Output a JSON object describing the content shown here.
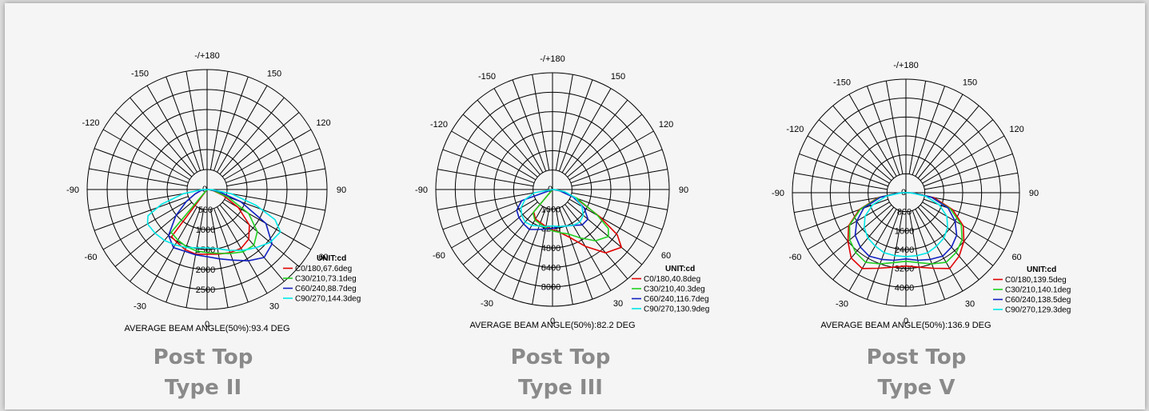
{
  "chart_data": [
    {
      "type": "polar",
      "caption": [
        "Post Top",
        "Type II"
      ],
      "unit": "UNIT:cd",
      "footer": "AVERAGE BEAM ANGLE(50%):93.4 DEG",
      "radial_ticks": [
        "0",
        "500",
        "1000",
        "1500",
        "2000",
        "2500"
      ],
      "rmax": 3000,
      "angle_labels": [
        "-/+180",
        "150",
        "120",
        "90",
        "60",
        "30",
        "0",
        "-30",
        "-60",
        "-90",
        "-120",
        "-150"
      ],
      "series": [
        {
          "name": "C0/180,67.6deg",
          "color": "#e00000",
          "points": [
            [
              -37,
              1480
            ],
            [
              -30,
              1520
            ],
            [
              -20,
              1600
            ],
            [
              -10,
              1640
            ],
            [
              0,
              1620
            ],
            [
              10,
              1640
            ],
            [
              20,
              1680
            ],
            [
              30,
              1700
            ],
            [
              40,
              1620
            ],
            [
              50,
              1380
            ],
            [
              60,
              900
            ],
            [
              70,
              430
            ],
            [
              80,
              150
            ],
            [
              88,
              30
            ]
          ]
        },
        {
          "name": "C30/210,73.1deg",
          "color": "#20d020",
          "points": [
            [
              -40,
              1400
            ],
            [
              -30,
              1460
            ],
            [
              -20,
              1520
            ],
            [
              -10,
              1560
            ],
            [
              0,
              1580
            ],
            [
              10,
              1620
            ],
            [
              20,
              1700
            ],
            [
              30,
              1800
            ],
            [
              40,
              1820
            ],
            [
              50,
              1640
            ],
            [
              60,
              1200
            ],
            [
              70,
              560
            ],
            [
              80,
              180
            ],
            [
              88,
              40
            ]
          ]
        },
        {
          "name": "C60/240,88.7deg",
          "color": "#1020c0",
          "points": [
            [
              -88,
              40
            ],
            [
              -80,
              160
            ],
            [
              -70,
              320
            ],
            [
              -60,
              600
            ],
            [
              -50,
              1020
            ],
            [
              -40,
              1500
            ],
            [
              -30,
              1680
            ],
            [
              -20,
              1640
            ],
            [
              -10,
              1660
            ],
            [
              0,
              1680
            ],
            [
              10,
              1760
            ],
            [
              20,
              1880
            ],
            [
              30,
              2060
            ],
            [
              40,
              2220
            ],
            [
              50,
              2120
            ],
            [
              60,
              1700
            ],
            [
              70,
              900
            ],
            [
              80,
              300
            ],
            [
              88,
              60
            ]
          ]
        },
        {
          "name": "C90/270,144.3deg",
          "color": "#00e8e8",
          "points": [
            [
              -88,
              120
            ],
            [
              -80,
              600
            ],
            [
              -72,
              1200
            ],
            [
              -66,
              1620
            ],
            [
              -60,
              1720
            ],
            [
              -50,
              1700
            ],
            [
              -40,
              1660
            ],
            [
              -30,
              1600
            ],
            [
              -20,
              1540
            ],
            [
              -10,
              1480
            ],
            [
              0,
              1460
            ],
            [
              10,
              1500
            ],
            [
              20,
              1620
            ],
            [
              30,
              1760
            ],
            [
              40,
              1900
            ],
            [
              50,
              2060
            ],
            [
              60,
              2120
            ],
            [
              66,
              1860
            ],
            [
              72,
              1300
            ],
            [
              80,
              620
            ],
            [
              88,
              120
            ]
          ]
        }
      ]
    },
    {
      "type": "polar",
      "caption": [
        "Post Top",
        "Type III"
      ],
      "unit": "UNIT:cd",
      "footer": "AVERAGE BEAM ANGLE(50%):82.2 DEG",
      "radial_ticks": [
        "0",
        "1600",
        "3200",
        "4800",
        "6400",
        "8000"
      ],
      "rmax": 9600,
      "angle_labels": [
        "-/+180",
        "150",
        "120",
        "90",
        "60",
        "30",
        "0",
        "-30",
        "-60",
        "-90",
        "-120",
        "-150"
      ],
      "series": [
        {
          "name": "C0/180,40.8deg",
          "color": "#e00000",
          "points": [
            [
              -40,
              2400
            ],
            [
              -30,
              2800
            ],
            [
              -20,
              2900
            ],
            [
              -10,
              3100
            ],
            [
              0,
              3300
            ],
            [
              10,
              3600
            ],
            [
              20,
              4200
            ],
            [
              30,
              5400
            ],
            [
              40,
              6800
            ],
            [
              50,
              7400
            ],
            [
              55,
              6500
            ],
            [
              60,
              4500
            ],
            [
              70,
              2000
            ],
            [
              80,
              700
            ],
            [
              88,
              100
            ]
          ]
        },
        {
          "name": "C30/210,40.3deg",
          "color": "#20d020",
          "points": [
            [
              -40,
              2500
            ],
            [
              -30,
              2900
            ],
            [
              -20,
              3000
            ],
            [
              -10,
              3200
            ],
            [
              0,
              3400
            ],
            [
              10,
              3600
            ],
            [
              20,
              3900
            ],
            [
              30,
              4600
            ],
            [
              40,
              5500
            ],
            [
              50,
              6000
            ],
            [
              55,
              5600
            ],
            [
              60,
              4300
            ],
            [
              70,
              2200
            ],
            [
              80,
              800
            ],
            [
              88,
              100
            ]
          ]
        },
        {
          "name": "C60/240,116.7deg",
          "color": "#1020c0",
          "points": [
            [
              -70,
              2700
            ],
            [
              -60,
              3400
            ],
            [
              -50,
              3600
            ],
            [
              -40,
              3700
            ],
            [
              -30,
              3800
            ],
            [
              -20,
              3500
            ],
            [
              -10,
              3300
            ],
            [
              0,
              3200
            ],
            [
              10,
              3100
            ],
            [
              20,
              3200
            ],
            [
              30,
              3400
            ],
            [
              40,
              3800
            ],
            [
              50,
              3800
            ],
            [
              60,
              3000
            ],
            [
              70,
              1800
            ],
            [
              80,
              600
            ],
            [
              88,
              100
            ]
          ]
        },
        {
          "name": "C90/270,130.9deg",
          "color": "#00e8e8",
          "points": [
            [
              -80,
              1500
            ],
            [
              -70,
              2400
            ],
            [
              -60,
              3000
            ],
            [
              -50,
              3300
            ],
            [
              -40,
              3500
            ],
            [
              -30,
              3400
            ],
            [
              -20,
              3200
            ],
            [
              -10,
              3100
            ],
            [
              0,
              3000
            ],
            [
              10,
              3100
            ],
            [
              20,
              3200
            ],
            [
              30,
              3400
            ],
            [
              40,
              3500
            ],
            [
              50,
              3300
            ],
            [
              60,
              2800
            ],
            [
              70,
              2000
            ],
            [
              80,
              1000
            ],
            [
              88,
              200
            ]
          ]
        }
      ]
    },
    {
      "type": "polar",
      "caption": [
        "Post Top",
        "Type V"
      ],
      "unit": "UNIT:cd",
      "footer": "AVERAGE BEAM ANGLE(50%):136.9 DEG",
      "radial_ticks": [
        "0",
        "800",
        "1600",
        "2400",
        "3200",
        "4000"
      ],
      "rmax": 4800,
      "angle_labels": [
        "-/+180",
        "150",
        "120",
        "90",
        "60",
        "30",
        "0",
        "-30",
        "-60",
        "-90",
        "-120",
        "-150"
      ],
      "series": [
        {
          "name": "C0/180,139.5deg",
          "color": "#e00000",
          "points": [
            [
              -88,
              300
            ],
            [
              -80,
              1200
            ],
            [
              -70,
              2100
            ],
            [
              -60,
              2800
            ],
            [
              -50,
              3200
            ],
            [
              -40,
              3600
            ],
            [
              -30,
              3700
            ],
            [
              -20,
              3400
            ],
            [
              -10,
              3200
            ],
            [
              0,
              3100
            ],
            [
              10,
              3200
            ],
            [
              20,
              3400
            ],
            [
              30,
              3700
            ],
            [
              40,
              3500
            ],
            [
              50,
              3200
            ],
            [
              60,
              2800
            ],
            [
              70,
              2100
            ],
            [
              80,
              1200
            ],
            [
              88,
              300
            ]
          ]
        },
        {
          "name": "C30/210,140.1deg",
          "color": "#20d020",
          "points": [
            [
              -88,
              300
            ],
            [
              -80,
              1150
            ],
            [
              -70,
              2050
            ],
            [
              -60,
              2750
            ],
            [
              -50,
              3100
            ],
            [
              -40,
              3300
            ],
            [
              -30,
              3400
            ],
            [
              -20,
              3200
            ],
            [
              -10,
              3000
            ],
            [
              0,
              2900
            ],
            [
              10,
              3000
            ],
            [
              20,
              3200
            ],
            [
              30,
              3400
            ],
            [
              40,
              3300
            ],
            [
              50,
              3100
            ],
            [
              60,
              2700
            ],
            [
              70,
              2000
            ],
            [
              80,
              1100
            ],
            [
              88,
              300
            ]
          ]
        },
        {
          "name": "C60/240,138.5deg",
          "color": "#1020c0",
          "points": [
            [
              -88,
              280
            ],
            [
              -80,
              1100
            ],
            [
              -70,
              1900
            ],
            [
              -60,
              2400
            ],
            [
              -50,
              2800
            ],
            [
              -40,
              3000
            ],
            [
              -30,
              3100
            ],
            [
              -20,
              3000
            ],
            [
              -10,
              2900
            ],
            [
              0,
              2800
            ],
            [
              10,
              2900
            ],
            [
              20,
              3000
            ],
            [
              30,
              3100
            ],
            [
              40,
              3000
            ],
            [
              50,
              2800
            ],
            [
              60,
              2400
            ],
            [
              70,
              1900
            ],
            [
              80,
              1100
            ],
            [
              88,
              280
            ]
          ]
        },
        {
          "name": "C90/270,129.3deg",
          "color": "#00e8e8",
          "points": [
            [
              -88,
              200
            ],
            [
              -80,
              850
            ],
            [
              -70,
              1500
            ],
            [
              -60,
              2000
            ],
            [
              -50,
              2300
            ],
            [
              -40,
              2500
            ],
            [
              -30,
              2600
            ],
            [
              -20,
              2700
            ],
            [
              -10,
              2700
            ],
            [
              0,
              2700
            ],
            [
              10,
              2700
            ],
            [
              20,
              2700
            ],
            [
              30,
              2600
            ],
            [
              40,
              2500
            ],
            [
              50,
              2300
            ],
            [
              60,
              2000
            ],
            [
              70,
              1500
            ],
            [
              80,
              850
            ],
            [
              88,
              200
            ]
          ]
        }
      ]
    }
  ]
}
